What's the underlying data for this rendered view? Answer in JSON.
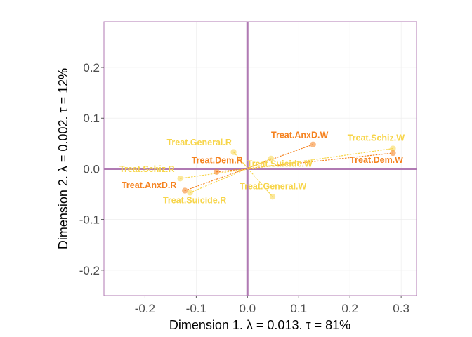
{
  "chart_data": {
    "type": "scatter",
    "xlabel": "Dimension 1.   λ = 0.013.  τ = 81%",
    "ylabel": "Dimension 2.   λ = 0.002.  τ = 12%",
    "xlim": [
      -0.28,
      0.33
    ],
    "ylim": [
      -0.25,
      0.29
    ],
    "xticks": [
      -0.2,
      -0.1,
      0.0,
      0.1,
      0.2,
      0.3
    ],
    "xtick_labels": [
      "-0.2",
      "-0.1",
      "0.0",
      "0.1",
      "0.2",
      "0.3"
    ],
    "yticks": [
      -0.2,
      -0.1,
      0.0,
      0.1,
      0.2
    ],
    "ytick_labels": [
      "-0.2",
      "-0.1",
      "0.0",
      "0.1",
      "0.2"
    ],
    "grid": true,
    "legend": "none",
    "colors": {
      "panel_border": "#b07ab3",
      "zero_line": "#b07ab3",
      "orange": "#f5821f",
      "yellow": "#f7d54a"
    },
    "points": [
      {
        "name": "Treat.AnxD.W",
        "x": 0.128,
        "y": 0.048,
        "color": "#f5821f"
      },
      {
        "name": "Treat.Schiz.W",
        "x": 0.284,
        "y": 0.04,
        "color": "#f7d54a"
      },
      {
        "name": "Treat.Dem.W",
        "x": 0.284,
        "y": 0.031,
        "color": "#f5821f"
      },
      {
        "name": "Treat.Suicide.W",
        "x": 0.046,
        "y": 0.02,
        "color": "#f7d54a"
      },
      {
        "name": "Treat.General.W",
        "x": 0.049,
        "y": -0.055,
        "color": "#f7d54a"
      },
      {
        "name": "Treat.General.R",
        "x": -0.027,
        "y": 0.033,
        "color": "#f7d54a"
      },
      {
        "name": "Treat.Dem.R",
        "x": -0.06,
        "y": -0.006,
        "color": "#f5821f"
      },
      {
        "name": "Treat.Schiz.R",
        "x": -0.131,
        "y": -0.019,
        "color": "#f7d54a"
      },
      {
        "name": "Treat.AnxD.R",
        "x": -0.122,
        "y": -0.043,
        "color": "#f5821f"
      },
      {
        "name": "Treat.Suicide.R",
        "x": -0.112,
        "y": -0.047,
        "color": "#f7d54a"
      }
    ],
    "labels": [
      {
        "text": "Treat.AnxD.W",
        "x": 0.102,
        "y": 0.061,
        "color": "#f5821f"
      },
      {
        "text": "Treat.Schiz.W",
        "x": 0.251,
        "y": 0.055,
        "color": "#f7d54a"
      },
      {
        "text": "Treat.Dem.W",
        "x": 0.252,
        "y": 0.012,
        "color": "#f5821f"
      },
      {
        "text": "Treat.Suicide.W",
        "x": 0.063,
        "y": 0.004,
        "color": "#f7d54a"
      },
      {
        "text": "Treat.General.W",
        "x": 0.05,
        "y": -0.04,
        "color": "#f7d54a"
      },
      {
        "text": "Treat.General.R",
        "x": -0.094,
        "y": 0.046,
        "color": "#f7d54a"
      },
      {
        "text": "Treat.Dem.R",
        "x": -0.059,
        "y": 0.011,
        "color": "#f5821f"
      },
      {
        "text": "Treat.Schiz.R",
        "x": -0.196,
        "y": -0.006,
        "color": "#f7d54a"
      },
      {
        "text": "Treat.AnxD.R",
        "x": -0.192,
        "y": -0.038,
        "color": "#f5821f"
      },
      {
        "text": "Treat.Suicide.R",
        "x": -0.103,
        "y": -0.068,
        "color": "#f7d54a"
      }
    ],
    "links": [
      {
        "from": "Treat.AnxD.R",
        "to": "Treat.AnxD.W",
        "color": "#f5821f"
      },
      {
        "from": "Treat.Dem.R",
        "to": "Treat.Dem.W",
        "color": "#f5821f"
      },
      {
        "from": "Treat.Schiz.R",
        "to": "Treat.Schiz.W",
        "color": "#f7d54a"
      },
      {
        "from": "Treat.Suicide.R",
        "to": "Treat.Suicide.W",
        "color": "#f7d54a"
      },
      {
        "from": "Treat.General.R",
        "to": "Treat.General.W",
        "color": "#f7d54a"
      }
    ]
  }
}
